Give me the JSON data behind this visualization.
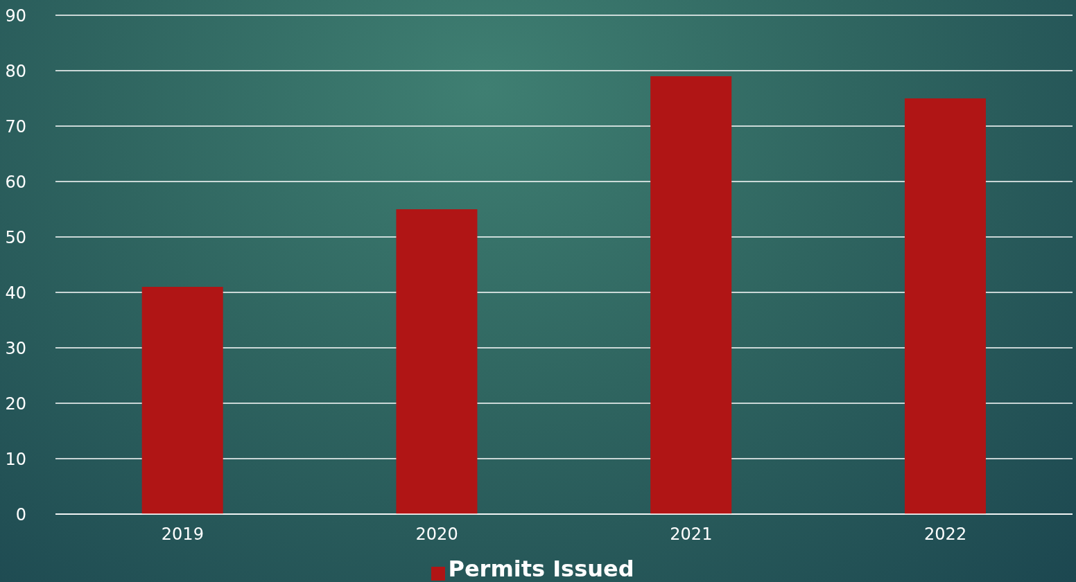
{
  "chart_data": {
    "type": "bar",
    "categories": [
      "2019",
      "2020",
      "2021",
      "2022"
    ],
    "series": [
      {
        "name": "Permits Issued",
        "color": "#b01515",
        "values": [
          41,
          55,
          79,
          75
        ]
      }
    ],
    "ylim": [
      0,
      90
    ],
    "yticks": [
      0,
      10,
      20,
      30,
      40,
      50,
      60,
      70,
      80,
      90
    ],
    "grid": "y",
    "legend": "bottom"
  }
}
